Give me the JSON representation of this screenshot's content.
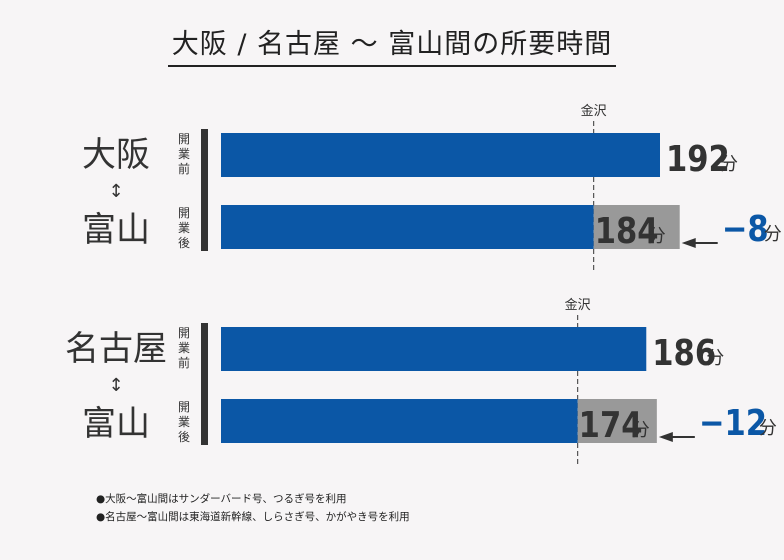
{
  "title": "大阪 / 名古屋 ～ 富山間の所要時間",
  "unit": "分",
  "reference_label": "金沢",
  "period_labels": {
    "before": "開業前",
    "after": "開業後"
  },
  "arrow_glyph": "↕",
  "colors": {
    "before_bar": "#0b57a6",
    "after_bar": "#0b57a6",
    "overlap": "#999999",
    "diff_text": "#0b57a6",
    "value_text": "#333333",
    "background": "#f7f5f6"
  },
  "chart_data": [
    {
      "type": "bar",
      "route_from": "大阪",
      "route_to": "富山",
      "categories": [
        "開業前",
        "開業後"
      ],
      "values": [
        192,
        184
      ],
      "kanazawa_minutes": 163,
      "difference": "−8",
      "unit": "分"
    },
    {
      "type": "bar",
      "route_from": "名古屋",
      "route_to": "富山",
      "categories": [
        "開業前",
        "開業後"
      ],
      "values": [
        186,
        174
      ],
      "kanazawa_minutes": 156,
      "difference": "−12",
      "unit": "分"
    }
  ],
  "footnotes": [
    "●大阪～富山間はサンダーバード号、つるぎ号を利用",
    "●名古屋～富山間は東海道新幹線、しらさぎ号、かがやき号を利用"
  ]
}
